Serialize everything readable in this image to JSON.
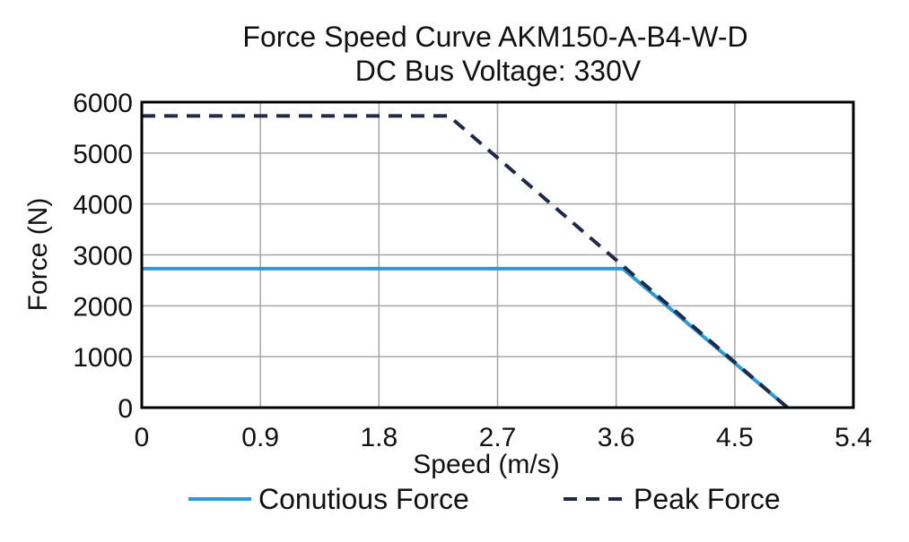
{
  "chart_data": {
    "type": "line",
    "title": "Force Speed Curve AKM150-A-B4-W-D",
    "subtitle": "DC Bus Voltage: 330V",
    "xlabel": "Speed (m/s)",
    "ylabel": "Force (N)",
    "xlim": [
      0,
      5.4
    ],
    "ylim": [
      0,
      6000
    ],
    "x_ticks": [
      0,
      0.9,
      1.8,
      2.7,
      3.6,
      4.5,
      5.4
    ],
    "x_tick_labels": [
      "0",
      "0.9",
      "1.8",
      "2.7",
      "3.6",
      "4.5",
      "5.4"
    ],
    "y_ticks": [
      0,
      1000,
      2000,
      3000,
      4000,
      5000,
      6000
    ],
    "y_tick_labels": [
      "0",
      "1000",
      "2000",
      "3000",
      "4000",
      "5000",
      "6000"
    ],
    "grid": true,
    "legend_position": "bottom",
    "series": [
      {
        "name": "Conutious Force",
        "color": "#2a9ad8",
        "style": "solid",
        "x": [
          0,
          3.65,
          4.9
        ],
        "y": [
          2730,
          2730,
          0
        ]
      },
      {
        "name": "Peak Force",
        "color": "#1f2a48",
        "style": "dashed",
        "x": [
          0,
          2.33,
          4.9
        ],
        "y": [
          5730,
          5730,
          0
        ]
      }
    ]
  }
}
